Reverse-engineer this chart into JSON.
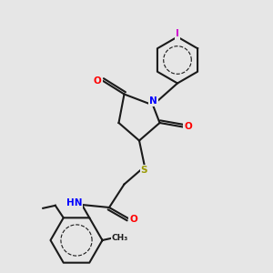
{
  "background_color": "#e6e6e6",
  "bond_color": "#1a1a1a",
  "bond_lw": 1.5,
  "atom_colors": {
    "O": "#ff0000",
    "N": "#0000ff",
    "S": "#999900",
    "I": "#cc00cc",
    "H": "#555555",
    "C": "#1a1a1a"
  },
  "font_size": 7.5,
  "font_size_small": 6.5
}
